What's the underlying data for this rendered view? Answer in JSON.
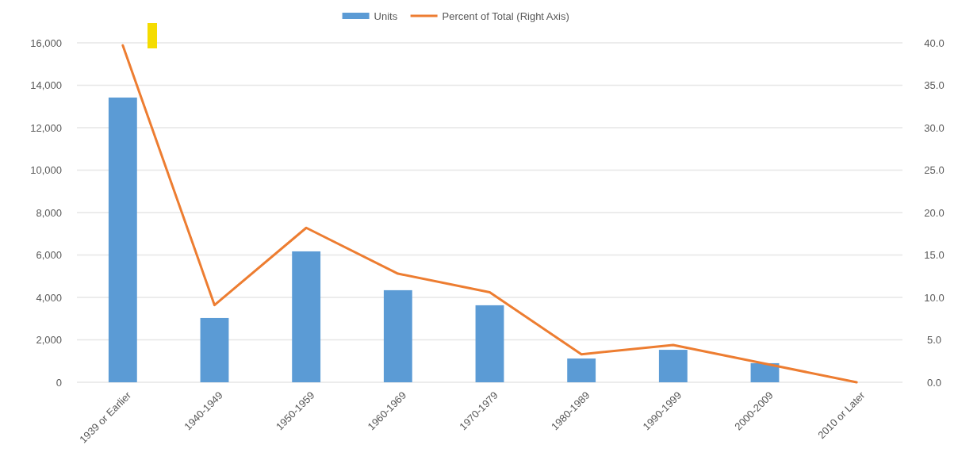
{
  "chart_data": {
    "type": "bar",
    "categories": [
      "1939 or Earlier",
      "1940-1949",
      "1950-1959",
      "1960-1969",
      "1970-1979",
      "1980-1989",
      "1990-1999",
      "2000-2009",
      "2010 or Later"
    ],
    "series": [
      {
        "name": "Units",
        "color": "#5b9bd5",
        "values": [
          13420,
          3030,
          6170,
          4340,
          3630,
          1120,
          1530,
          900,
          0
        ]
      },
      {
        "name": "Percent of Total (Right Axis)",
        "type": "line",
        "axis": "y2",
        "color": "#ed7d31",
        "values": [
          39.7,
          9.1,
          18.2,
          12.8,
          10.6,
          3.3,
          4.4,
          2.2,
          0
        ]
      }
    ],
    "ylim": [
      0,
      16000
    ],
    "yticks": [
      {
        "value": 0,
        "label": "0"
      },
      {
        "value": 2000,
        "label": "2,000"
      },
      {
        "value": 4000,
        "label": "4,000"
      },
      {
        "value": 6000,
        "label": "6,000"
      },
      {
        "value": 8000,
        "label": "8,000"
      },
      {
        "value": 10000,
        "label": "10,000"
      },
      {
        "value": 12000,
        "label": "12,000"
      },
      {
        "value": 14000,
        "label": "14,000"
      },
      {
        "value": 16000,
        "label": "16,000"
      }
    ],
    "y2lim": [
      0,
      40
    ],
    "y2ticks": [
      {
        "value": 0,
        "label": "0.0"
      },
      {
        "value": 5,
        "label": "5.0"
      },
      {
        "value": 10,
        "label": "10.0"
      },
      {
        "value": 15,
        "label": "15.0"
      },
      {
        "value": 20,
        "label": "20.0"
      },
      {
        "value": 25,
        "label": "25.0"
      },
      {
        "value": 30,
        "label": "30.0"
      },
      {
        "value": 35,
        "label": "35.0"
      },
      {
        "value": 40,
        "label": "40.0"
      }
    ],
    "grid": "y",
    "legend": "top"
  }
}
